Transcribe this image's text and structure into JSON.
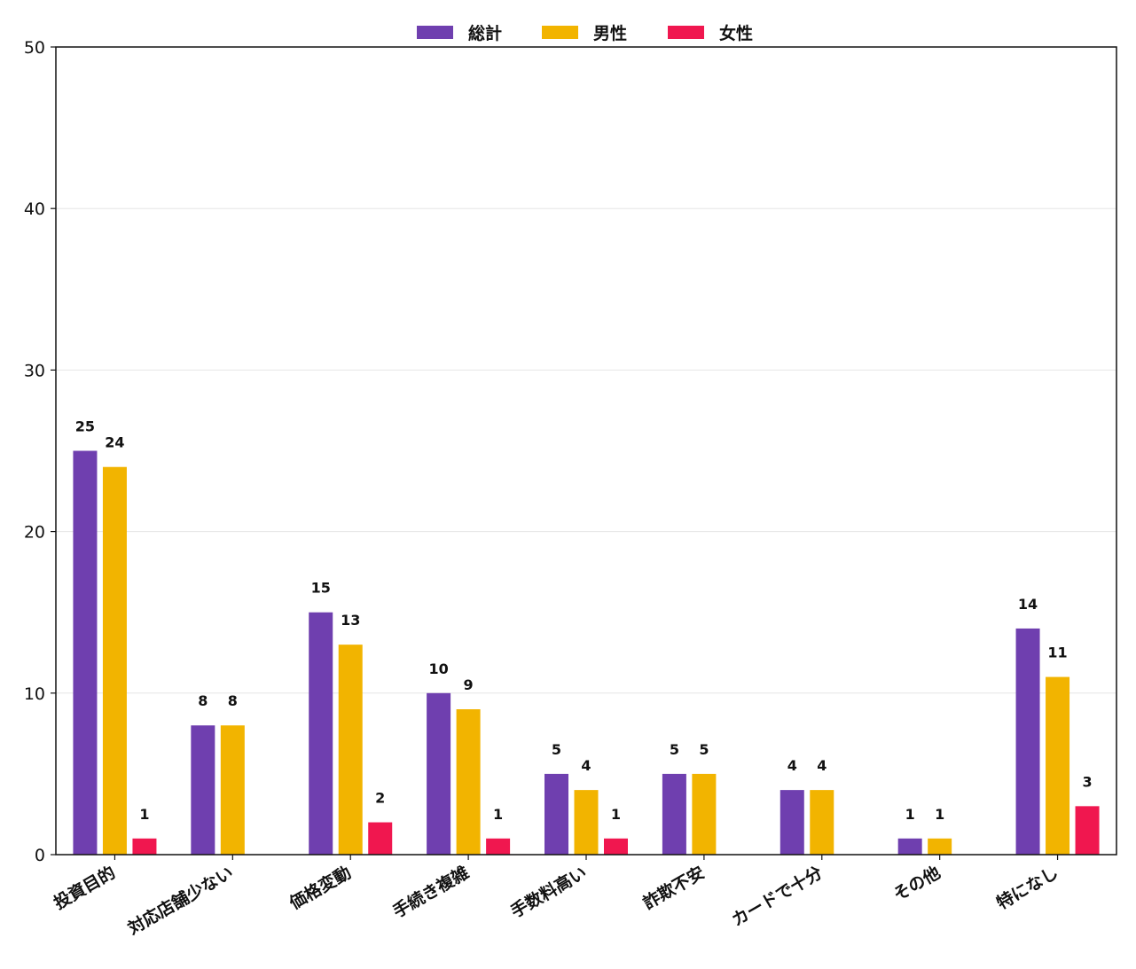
{
  "chart_data": {
    "type": "bar",
    "categories": [
      "投資目的",
      "対応店舗少ない",
      "価格変動",
      "手続き複雑",
      "手数料高い",
      "詐欺不安",
      "カードで十分",
      "その他",
      "特になし"
    ],
    "series": [
      {
        "name": "総計",
        "color": "#6f3faf",
        "values": [
          25,
          8,
          15,
          10,
          5,
          5,
          4,
          1,
          14
        ]
      },
      {
        "name": "男性",
        "color": "#f2b400",
        "values": [
          24,
          8,
          13,
          9,
          4,
          5,
          4,
          1,
          11
        ]
      },
      {
        "name": "女性",
        "color": "#f0174f",
        "values": [
          1,
          0,
          2,
          1,
          1,
          0,
          0,
          0,
          3
        ]
      }
    ],
    "ylim": [
      0,
      50
    ],
    "yticks": [
      0,
      10,
      20,
      30,
      40,
      50
    ],
    "grid": "horizontal",
    "legend_position": "top-center",
    "title": "",
    "xlabel": "",
    "ylabel": ""
  }
}
